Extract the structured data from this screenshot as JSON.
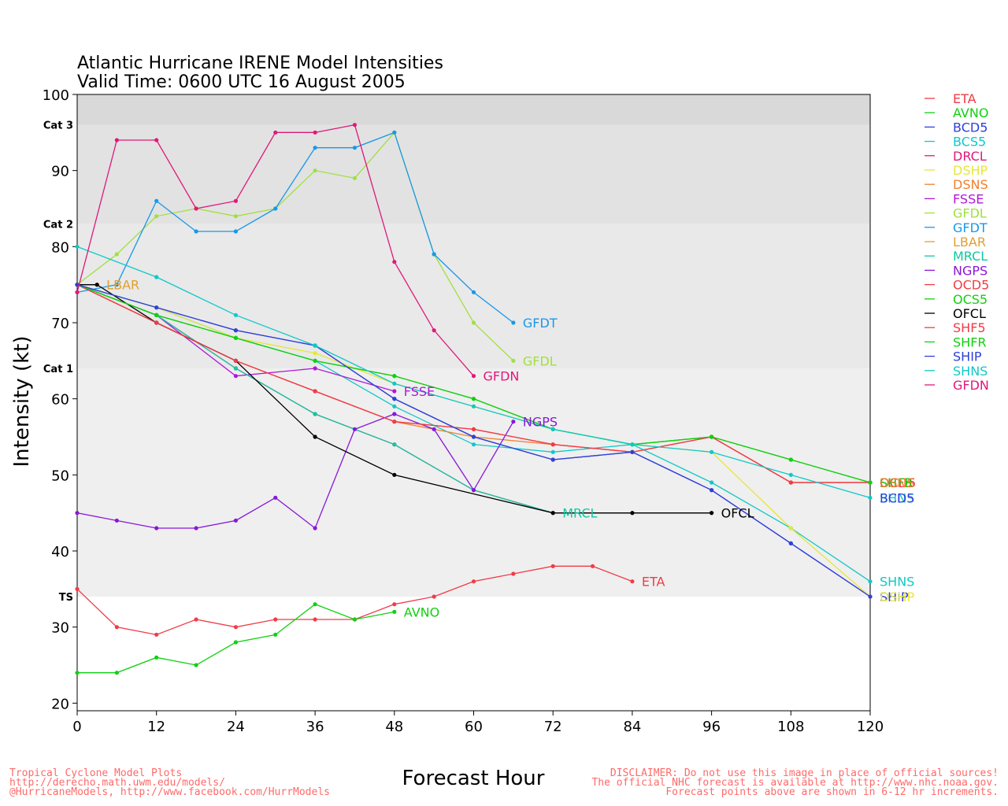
{
  "chart_data": {
    "type": "line",
    "title": "Atlantic Hurricane IRENE Model Intensities",
    "subtitle": "Valid Time: 0600 UTC 16 August 2005",
    "xlabel": "Forecast Hour",
    "ylabel": "Intensity (kt)",
    "xlim": [
      0,
      120
    ],
    "ylim": [
      19,
      100
    ],
    "xticks": [
      0,
      12,
      24,
      36,
      48,
      60,
      72,
      84,
      96,
      108,
      120
    ],
    "yticks": [
      20,
      30,
      40,
      50,
      60,
      70,
      80,
      90,
      100
    ],
    "categories_bands": [
      {
        "label": "TS",
        "from": 34,
        "to": 64,
        "color": "#efefef"
      },
      {
        "label": "Cat 1",
        "from": 64,
        "to": 83,
        "color": "#e9e9e9"
      },
      {
        "label": "Cat 2",
        "from": 83,
        "to": 96,
        "color": "#e2e2e2"
      },
      {
        "label": "Cat 3",
        "from": 96,
        "to": 100,
        "color": "#d9d9d9"
      }
    ],
    "legend_position": "right",
    "series": [
      {
        "name": "ETA",
        "color": "#f03c46",
        "x": [
          0,
          6,
          12,
          18,
          24,
          30,
          36,
          42,
          48,
          54,
          60,
          66,
          72,
          78,
          84
        ],
        "y": [
          35,
          30,
          29,
          31,
          30,
          31,
          31,
          31,
          33,
          34,
          36,
          37,
          38,
          38,
          36
        ],
        "end_label": "ETA"
      },
      {
        "name": "AVNO",
        "color": "#10d010",
        "x": [
          0,
          6,
          12,
          18,
          24,
          30,
          36,
          42,
          48
        ],
        "y": [
          24,
          24,
          26,
          25,
          28,
          29,
          33,
          31,
          32
        ],
        "end_label": "AVNO"
      },
      {
        "name": "BCD5",
        "color": "#3040d8",
        "x": [
          0,
          12,
          24,
          36,
          48,
          60,
          72,
          84,
          96,
          108,
          120
        ],
        "y": [
          75,
          72,
          69,
          67,
          60,
          55,
          52,
          53,
          48,
          41,
          34
        ],
        "end_label": ""
      },
      {
        "name": "BCS5",
        "color": "#10c8c8",
        "x": [
          0,
          12,
          24,
          36,
          48,
          60,
          72,
          84,
          96,
          108,
          120
        ],
        "y": [
          75,
          72,
          68,
          65,
          59,
          54,
          53,
          54,
          49,
          43,
          36
        ],
        "end_label": ""
      },
      {
        "name": "DRCL",
        "color": "#e0187a",
        "x": [
          0,
          12,
          24,
          36,
          48,
          60,
          72,
          84,
          96
        ],
        "y": [
          75,
          71,
          64,
          58,
          54,
          48,
          45,
          45,
          45
        ],
        "end_label": ""
      },
      {
        "name": "DSHP",
        "color": "#e6e63c",
        "x": [
          0,
          12,
          24,
          36,
          48,
          60,
          72,
          84,
          96,
          108,
          120
        ],
        "y": [
          75,
          72,
          68,
          66,
          62,
          59,
          56,
          54,
          53,
          43,
          34
        ],
        "end_label": ""
      },
      {
        "name": "DSNS",
        "color": "#f08030",
        "x": [
          0,
          12,
          24,
          36,
          48,
          60,
          72,
          84,
          96,
          108,
          120
        ],
        "y": [
          75,
          70,
          65,
          61,
          57,
          55,
          54,
          53,
          55,
          49,
          49
        ],
        "end_label": ""
      },
      {
        "name": "FSSE",
        "color": "#b018d8",
        "x": [
          0,
          12,
          24,
          36,
          48
        ],
        "y": [
          75,
          71,
          63,
          64,
          61
        ],
        "end_label": "FSSE"
      },
      {
        "name": "GFDL",
        "color": "#a0e040",
        "x": [
          0,
          6,
          12,
          18,
          24,
          30,
          36,
          42,
          48,
          54,
          60,
          66
        ],
        "y": [
          75,
          79,
          84,
          85,
          84,
          85,
          90,
          89,
          95,
          79,
          70,
          65
        ],
        "end_label": "GFDL"
      },
      {
        "name": "GFDT",
        "color": "#1898e8",
        "x": [
          0,
          6,
          12,
          18,
          24,
          30,
          36,
          42,
          48,
          54,
          60,
          66
        ],
        "y": [
          74,
          75,
          86,
          82,
          82,
          85,
          93,
          93,
          95,
          79,
          74,
          70
        ],
        "end_label": "GFDT"
      },
      {
        "name": "LBAR",
        "color": "#e0a030",
        "x": [
          0,
          3
        ],
        "y": [
          75,
          75
        ],
        "end_label": "LBAR"
      },
      {
        "name": "MRCL",
        "color": "#10c8a0",
        "x": [
          0,
          12,
          24,
          36,
          48,
          60,
          72
        ],
        "y": [
          75,
          71,
          64,
          58,
          54,
          48,
          45
        ],
        "end_label": "MRCL"
      },
      {
        "name": "NGPS",
        "color": "#8818d8",
        "x": [
          0,
          6,
          12,
          18,
          24,
          30,
          36,
          42,
          48,
          54,
          60,
          66
        ],
        "y": [
          45,
          44,
          43,
          43,
          44,
          47,
          43,
          56,
          58,
          56,
          48,
          57
        ],
        "end_label": "NGPS"
      },
      {
        "name": "OCD5",
        "color": "#f03c46",
        "x": [
          0,
          12,
          24,
          36,
          48,
          60,
          72,
          84,
          96,
          108,
          120
        ],
        "y": [
          75,
          70,
          65,
          61,
          57,
          56,
          54,
          53,
          55,
          49,
          49
        ],
        "end_label": "OCD5"
      },
      {
        "name": "OCS5",
        "color": "#10d010",
        "x": [
          0,
          12,
          24,
          36,
          48,
          60,
          72,
          84,
          96,
          108,
          120
        ],
        "y": [
          75,
          71,
          68,
          65,
          63,
          60,
          56,
          54,
          55,
          52,
          49
        ],
        "end_label": ""
      },
      {
        "name": "OFCL",
        "color": "#000000",
        "x": [
          0,
          3,
          12,
          24,
          36,
          48,
          72,
          84,
          96
        ],
        "y": [
          75,
          75,
          70,
          65,
          55,
          50,
          45,
          45,
          45
        ],
        "end_label": "OFCL"
      },
      {
        "name": "SHF5",
        "color": "#f03c46",
        "x": [
          0,
          12,
          24,
          36,
          48,
          60,
          72,
          84,
          96,
          108,
          120
        ],
        "y": [
          75,
          70,
          65,
          61,
          57,
          56,
          54,
          53,
          55,
          49,
          49
        ],
        "end_label": "SHF5"
      },
      {
        "name": "SHFR",
        "color": "#10d010",
        "x": [
          0,
          12,
          24,
          36,
          48,
          60,
          72,
          84,
          96,
          108,
          120
        ],
        "y": [
          75,
          71,
          68,
          65,
          63,
          60,
          56,
          54,
          55,
          52,
          49
        ],
        "end_label": "SHFR"
      },
      {
        "name": "SHIP",
        "color": "#3040d8",
        "x": [
          0,
          12,
          24,
          36,
          48,
          60,
          72,
          84,
          96,
          108,
          120
        ],
        "y": [
          75,
          72,
          69,
          67,
          60,
          55,
          52,
          53,
          48,
          41,
          34
        ],
        "end_label": "SHIP"
      },
      {
        "name": "SHNS",
        "color": "#10c8c8",
        "x": [
          0,
          12,
          24,
          36,
          48,
          60,
          72,
          84,
          96,
          108,
          120
        ],
        "y": [
          80,
          76,
          71,
          67,
          62,
          59,
          56,
          54,
          53,
          50,
          47
        ],
        "end_label": "SHNS"
      },
      {
        "name": "GFDN",
        "color": "#e0187a",
        "x": [
          0,
          6,
          12,
          18,
          24,
          30,
          36,
          42,
          48,
          54,
          60
        ],
        "y": [
          74,
          94,
          94,
          85,
          86,
          95,
          95,
          96,
          78,
          69,
          63
        ],
        "end_label": "GFDN"
      }
    ],
    "extra_labels": [
      {
        "text": "BCD5",
        "color": "#3040d8",
        "x": 120,
        "y": 47
      },
      {
        "text": "SHNS",
        "color": "#10c8c8",
        "x": 120,
        "y": 36
      },
      {
        "text": "DSHP",
        "color": "#e6e63c",
        "x": 120,
        "y": 34
      },
      {
        "text": "DSNS",
        "color": "#f08030",
        "x": 120,
        "y": 49
      }
    ]
  },
  "footer": {
    "left_lines": [
      "Tropical Cyclone Model Plots",
      "http://derecho.math.uwm.edu/models/",
      "@HurricaneModels, http://www.facebook.com/HurrModels"
    ],
    "right_lines": [
      "DISCLAIMER: Do not use this image in place of official sources!",
      "The official NHC forecast is available at http://www.nhc.noaa.gov.",
      "Forecast points above are shown in 6-12 hr increments."
    ]
  }
}
